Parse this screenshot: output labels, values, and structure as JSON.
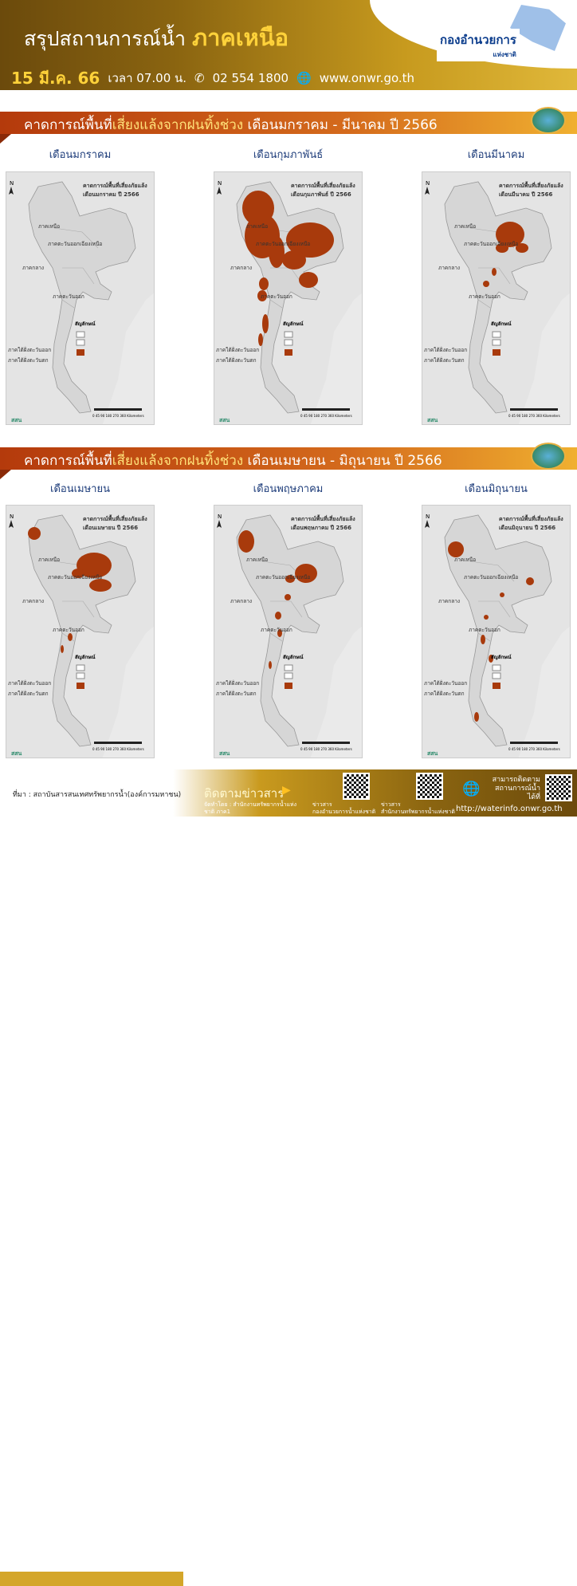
{
  "header": {
    "title": "สรุปสถานการณ์น้ำ",
    "region": "ภาคเหนือ",
    "date": "15 มี.ค. 66",
    "time": "เวลา 07.00 น.",
    "phone": "02 554 1800",
    "website": "www.onwr.go.th",
    "logo_text": "กองอำนวยการ",
    "logo_sub": "แห่งชาติ",
    "phone_icon": "phone-icon",
    "web_icon": "globe-icon"
  },
  "sections": [
    {
      "prefix": "คาดการณ์พื้นที่",
      "highlight": "เสี่ยงแล้งจากฝนทิ้งช่วง",
      "suffix": " เดือนมกราคม - มีนาคม ปี 2566",
      "months": [
        "เดือนมกราคม",
        "เดือนกุมภาพันธ์",
        "เดือนมีนาคม"
      ]
    },
    {
      "prefix": "คาดการณ์พื้นที่",
      "highlight": "เสี่ยงแล้งจากฝนทิ้งช่วง",
      "suffix": " เดือนเมษายน - มิถุนายน ปี 2566",
      "months": [
        "เดือนเมษายน",
        "เดือนพฤษภาคม",
        "เดือนมิถุนายน"
      ]
    }
  ],
  "maps": [
    {
      "title": "คาดการณ์พื้นที่เสี่ยงภัยแล้ง",
      "subtitle": "เดือนมกราคม ปี 2566",
      "risk_level": "none"
    },
    {
      "title": "คาดการณ์พื้นที่เสี่ยงภัยแล้ง",
      "subtitle": "เดือนกุมภาพันธ์ ปี 2566",
      "risk_level": "very high"
    },
    {
      "title": "คาดการณ์พื้นที่เสี่ยงภัยแล้ง",
      "subtitle": "เดือนมีนาคม ปี 2566",
      "risk_level": "moderate"
    },
    {
      "title": "คาดการณ์พื้นที่เสี่ยงภัยแล้ง",
      "subtitle": "เดือนเมษายน ปี 2566",
      "risk_level": "moderate"
    },
    {
      "title": "คาดการณ์พื้นที่เสี่ยงภัยแล้ง",
      "subtitle": "เดือนพฤษภาคม ปี 2566",
      "risk_level": "low"
    },
    {
      "title": "คาดการณ์พื้นที่เสี่ยงภัยแล้ง",
      "subtitle": "เดือนมิถุนายน ปี 2566",
      "risk_level": "low"
    }
  ],
  "map_common": {
    "regions": [
      "ภาคเหนือ",
      "ภาคตะวันออกเฉียงเหนือ",
      "ภาคกลาง",
      "ภาคตะวันออก",
      "ภาคใต้ฝั่งตะวันออก",
      "ภาคใต้ฝั่งตะวันตก"
    ],
    "legend_title": "สัญลักษณ์",
    "scale": "0 45 90 180 270 360 Kilometers",
    "north": "N",
    "logo": "สสน",
    "risk_color": "#a83a0c",
    "land_color": "#d6d6d6"
  },
  "footer": {
    "source": "ที่มา : สถาบันสารสนเทศทรัพยากรน้ำ(องค์การมหาชน)",
    "follow": "ติดตามข่าวสาร",
    "producer": "จัดทำโดย : สำนักงานทรัพยากรน้ำแห่งชาติ ภาค1",
    "news1_label": "ข่าวสาร",
    "news1_sub": "กองอำนวยการน้ำแห่งชาติ",
    "news2_label": "ข่าวสาร",
    "news2_sub": "สำนักงานทรัพยากรน้ำแห่งชาติ",
    "waterinfo_text": "สามารถติดตาม สถานการณ์น้ำได้ที่",
    "waterinfo_url": "http://waterinfo.onwr.go.th"
  }
}
